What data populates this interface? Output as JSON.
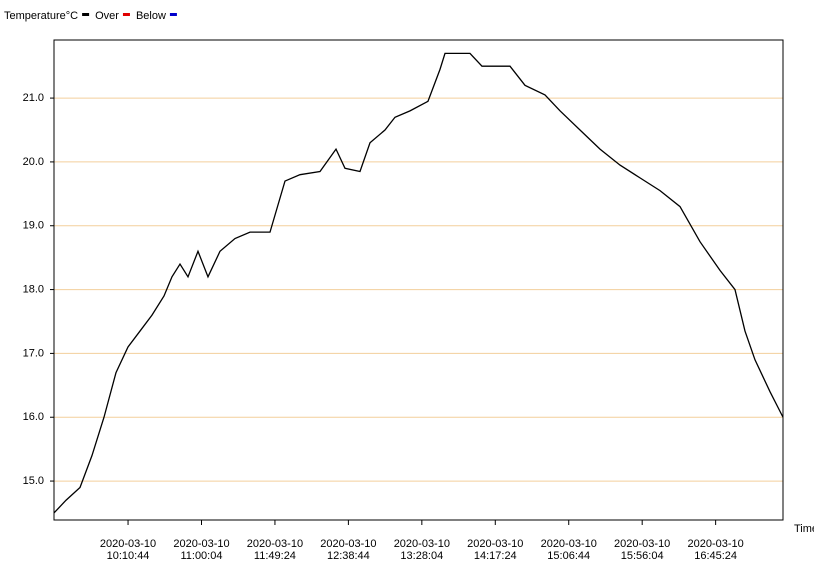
{
  "chart_data": {
    "type": "line",
    "x_label": "Time",
    "series": [
      {
        "name": "Temperature°C",
        "color": "#000000",
        "x": [
          "2020-03-10 09:21:00",
          "2020-03-10 09:29:04",
          "2020-03-10 09:38:28",
          "2020-03-10 09:46:31",
          "2020-03-10 09:54:35",
          "2020-03-10 10:02:39",
          "2020-03-10 10:10:42",
          "2020-03-10 10:18:46",
          "2020-03-10 10:26:49",
          "2020-03-10 10:34:53",
          "2020-03-10 10:40:15",
          "2020-03-10 10:45:38",
          "2020-03-10 10:51:00",
          "2020-03-10 10:57:43",
          "2020-03-10 11:04:26",
          "2020-03-10 11:12:30",
          "2020-03-10 11:22:34",
          "2020-03-10 11:32:39",
          "2020-03-10 11:46:05",
          "2020-03-10 11:56:09",
          "2020-03-10 12:06:14",
          "2020-03-10 12:19:40",
          "2020-03-10 12:30:25",
          "2020-03-10 12:36:27",
          "2020-03-10 12:46:32",
          "2020-03-10 12:53:15",
          "2020-03-10 13:03:19",
          "2020-03-10 13:10:02",
          "2020-03-10 13:20:07",
          "2020-03-10 13:32:12",
          "2020-03-10 13:40:16",
          "2020-03-10 13:43:37",
          "2020-03-10 14:00:25",
          "2020-03-10 14:08:28",
          "2020-03-10 14:27:17",
          "2020-03-10 14:37:21",
          "2020-03-10 14:50:47",
          "2020-03-10 15:00:52",
          "2020-03-10 15:14:18",
          "2020-03-10 15:27:44",
          "2020-03-10 15:41:10",
          "2020-03-10 15:54:36",
          "2020-03-10 16:08:02",
          "2020-03-10 16:21:28",
          "2020-03-10 16:34:54",
          "2020-03-10 16:48:20",
          "2020-03-10 16:58:24",
          "2020-03-10 17:05:07",
          "2020-03-10 17:11:50",
          "2020-03-10 17:21:55",
          "2020-03-10 17:30:39"
        ],
        "values": [
          14.5,
          14.7,
          14.9,
          15.4,
          16.0,
          16.7,
          17.1,
          17.35,
          17.6,
          17.9,
          18.2,
          18.4,
          18.2,
          18.6,
          18.2,
          18.6,
          18.8,
          18.9,
          18.9,
          19.7,
          19.8,
          19.85,
          20.2,
          19.9,
          19.85,
          20.3,
          20.5,
          20.7,
          20.8,
          20.95,
          21.45,
          21.7,
          21.7,
          21.5,
          21.5,
          21.2,
          21.05,
          20.8,
          20.5,
          20.2,
          19.95,
          19.75,
          19.55,
          19.3,
          18.75,
          18.3,
          18.0,
          17.35,
          16.9,
          16.4,
          16.0
        ]
      }
    ],
    "thresholds": [
      {
        "name": "Over",
        "color": "#e00000"
      },
      {
        "name": "Below",
        "color": "#0000cc"
      }
    ],
    "xlim": [
      "2020-03-10 09:21:00",
      "2020-03-10 17:30:39"
    ],
    "xticks": [
      "2020-03-10 10:10:44",
      "2020-03-10 11:00:04",
      "2020-03-10 11:49:24",
      "2020-03-10 12:38:44",
      "2020-03-10 13:28:04",
      "2020-03-10 14:17:24",
      "2020-03-10 15:06:44",
      "2020-03-10 15:56:04",
      "2020-03-10 16:45:24"
    ],
    "ylim": [
      14.39,
      21.91
    ],
    "yticks": [
      {
        "value": 15,
        "label": "15.0"
      },
      {
        "value": 16,
        "label": "16.0"
      },
      {
        "value": 17,
        "label": "17.0"
      },
      {
        "value": 18,
        "label": "18.0"
      },
      {
        "value": 19,
        "label": "19.0"
      },
      {
        "value": 20,
        "label": "20.0"
      },
      {
        "value": 21,
        "label": "21.0"
      }
    ],
    "grid": true,
    "grid_color": "#f3cf9c"
  }
}
